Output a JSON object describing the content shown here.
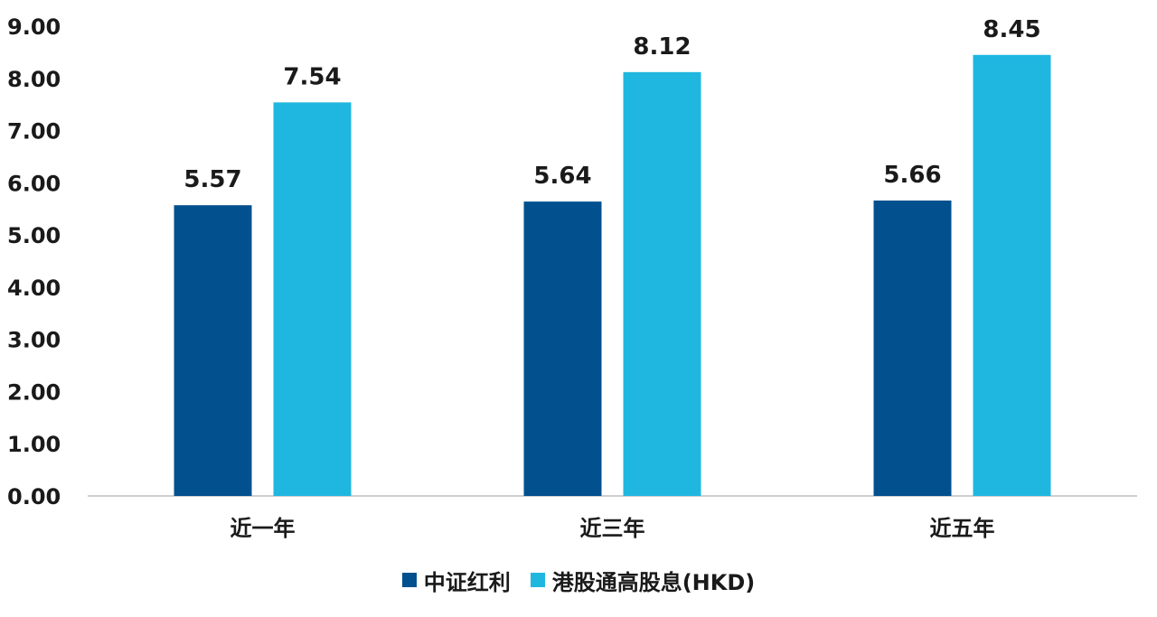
{
  "chart_data": {
    "type": "bar",
    "categories": [
      "近一年",
      "近三年",
      "近五年"
    ],
    "series": [
      {
        "name": "中证红利",
        "values": [
          5.57,
          5.64,
          5.66
        ],
        "color": "#03508f"
      },
      {
        "name": "港股通高股息(HKD)",
        "values": [
          7.54,
          8.12,
          8.45
        ],
        "color": "#1fb7e0"
      }
    ],
    "ylim": [
      0,
      9
    ],
    "yticks": [
      "0.00",
      "1.00",
      "2.00",
      "3.00",
      "4.00",
      "5.00",
      "6.00",
      "7.00",
      "8.00",
      "9.00"
    ],
    "grid": false,
    "legend_position": "bottom",
    "data_labels": true
  }
}
